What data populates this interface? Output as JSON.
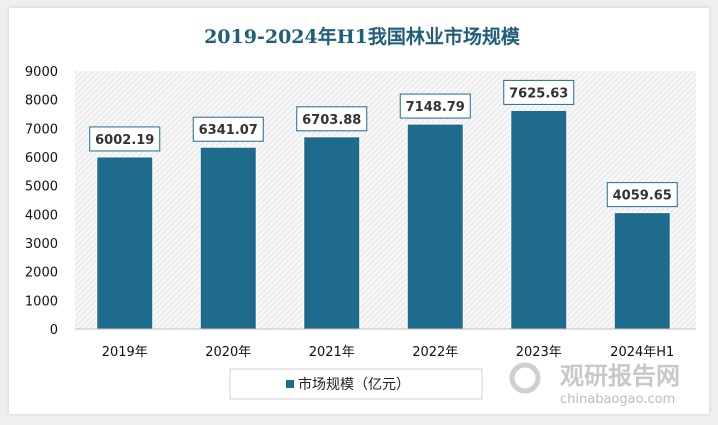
{
  "chart_data": {
    "type": "bar",
    "title": "2019-2024年H1我国林业市场规模",
    "categories": [
      "2019年",
      "2020年",
      "2021年",
      "2022年",
      "2023年",
      "2024年H1"
    ],
    "series": [
      {
        "name": "市场规模（亿元）",
        "values": [
          6002.19,
          6341.07,
          6703.88,
          7148.79,
          7625.63,
          4059.65
        ]
      }
    ],
    "data_labels": [
      "6002.19",
      "6341.07",
      "6703.88",
      "7148.79",
      "7625.63",
      "4059.65"
    ],
    "ylim": [
      0,
      9000
    ],
    "yticks": [
      0,
      1000,
      2000,
      3000,
      4000,
      5000,
      6000,
      7000,
      8000,
      9000
    ],
    "grid": false,
    "legend": "bottom",
    "colors": {
      "bar": "#1f6b8e",
      "title": "#1f5f7a"
    }
  },
  "watermark": {
    "name": "观研报告网",
    "url": "chinabaogao.com"
  }
}
